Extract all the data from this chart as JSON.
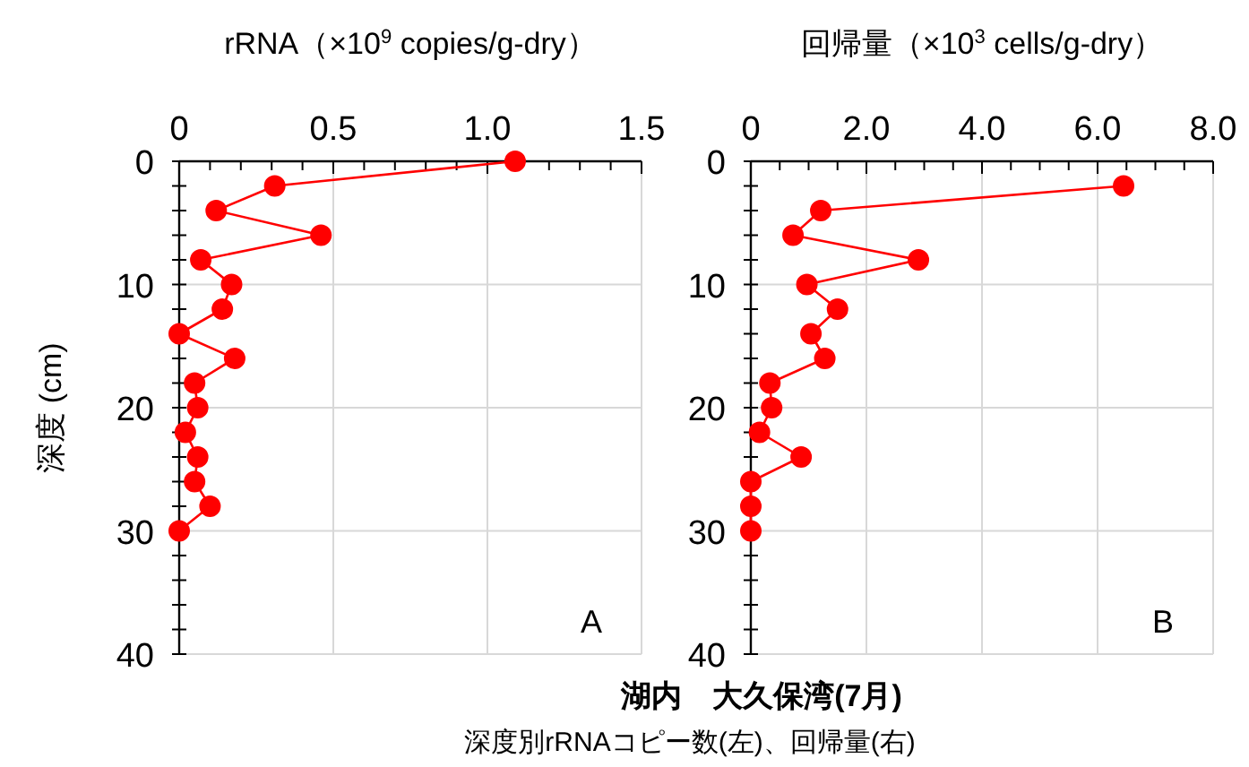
{
  "chart_data": [
    {
      "type": "line",
      "subtitle": "深度別rRNAコピー数(左)、回帰量(右)",
      "xlabel": "rRNA（×10$^{9}$ copies/g-dry）",
      "ylabel": "深度 (cm)",
      "xlim": [
        0,
        1.5
      ],
      "ylim": [
        40,
        0
      ],
      "grid": true,
      "marker": "circle",
      "annotations": [
        "A"
      ],
      "xticks": [
        0,
        {
          "value": 0.1,
          "label": null
        },
        {
          "value": 0.2,
          "label": null
        },
        {
          "value": 0.3,
          "label": null
        },
        {
          "value": 0.4,
          "label": null
        },
        {
          "value": 0.5,
          "label": "0.5"
        },
        {
          "value": 0.6,
          "label": null
        },
        {
          "value": 0.7,
          "label": null
        },
        {
          "value": 0.8,
          "label": null
        },
        {
          "value": 0.9,
          "label": null
        },
        {
          "value": 1,
          "label": "1.0"
        },
        {
          "value": 1.1,
          "label": null
        },
        {
          "value": 1.2,
          "label": null
        },
        {
          "value": 1.3,
          "label": null
        },
        {
          "value": 1.4,
          "label": null
        },
        {
          "value": 1.5,
          "label": "1.5"
        }
      ],
      "yticks": [
        0,
        {
          "value": 2,
          "label": null
        },
        {
          "value": 4,
          "label": null
        },
        {
          "value": 6,
          "label": null
        },
        {
          "value": 8,
          "label": null
        },
        10,
        {
          "value": 12,
          "label": null
        },
        {
          "value": 14,
          "label": null
        },
        {
          "value": 16,
          "label": null
        },
        {
          "value": 18,
          "label": null
        },
        20,
        {
          "value": 22,
          "label": null
        },
        {
          "value": 24,
          "label": null
        },
        {
          "value": 26,
          "label": null
        },
        {
          "value": 28,
          "label": null
        },
        30,
        {
          "value": 32,
          "label": null
        },
        {
          "value": 34,
          "label": null
        },
        {
          "value": 36,
          "label": null
        },
        {
          "value": 38,
          "label": null
        },
        40
      ],
      "series": [
        {
          "color": "#ff0000",
          "x": [
            1.09,
            0.31,
            0.12,
            0.46,
            0.07,
            0.17,
            0.14,
            0,
            0.18,
            0.05,
            0.06,
            0.02,
            0.06,
            0.05,
            0.1,
            0
          ],
          "values": [
            0,
            2,
            4,
            6,
            8,
            10,
            12,
            14,
            16,
            18,
            20,
            22,
            24,
            26,
            28,
            30
          ]
        }
      ]
    },
    {
      "type": "line",
      "title": "湖内　大久保湾(7月)",
      "xlabel": "回帰量（×10$^{3}$ cells/g-dry）",
      "xlim": [
        0,
        8
      ],
      "ylim": [
        40,
        0
      ],
      "grid": true,
      "marker": "circle",
      "annotations": [
        "B"
      ],
      "xticks": [
        0,
        {
          "value": 0.5,
          "label": null
        },
        {
          "value": 1,
          "label": null
        },
        {
          "value": 1.5,
          "label": null
        },
        {
          "value": 2,
          "label": "2.0"
        },
        {
          "value": 2.5,
          "label": null
        },
        {
          "value": 3,
          "label": null
        },
        {
          "value": 3.5,
          "label": null
        },
        {
          "value": 4,
          "label": "4.0"
        },
        {
          "value": 4.5,
          "label": null
        },
        {
          "value": 5,
          "label": null
        },
        {
          "value": 5.5,
          "label": null
        },
        {
          "value": 6,
          "label": "6.0"
        },
        {
          "value": 6.5,
          "label": null
        },
        {
          "value": 7,
          "label": null
        },
        {
          "value": 7.5,
          "label": null
        },
        {
          "value": 8,
          "label": "8.0"
        }
      ],
      "yticks": [
        0,
        {
          "value": 2,
          "label": null
        },
        {
          "value": 4,
          "label": null
        },
        {
          "value": 6,
          "label": null
        },
        {
          "value": 8,
          "label": null
        },
        10,
        {
          "value": 12,
          "label": null
        },
        {
          "value": 14,
          "label": null
        },
        {
          "value": 16,
          "label": null
        },
        {
          "value": 18,
          "label": null
        },
        20,
        {
          "value": 22,
          "label": null
        },
        {
          "value": 24,
          "label": null
        },
        {
          "value": 26,
          "label": null
        },
        {
          "value": 28,
          "label": null
        },
        30,
        {
          "value": 32,
          "label": null
        },
        {
          "value": 34,
          "label": null
        },
        {
          "value": 36,
          "label": null
        },
        {
          "value": 38,
          "label": null
        },
        40
      ],
      "series": [
        {
          "color": "#ff0000",
          "x": [
            6.45,
            1.21,
            0.73,
            2.9,
            0.97,
            1.5,
            1.04,
            1.28,
            0.33,
            0.36,
            0.15,
            0.87,
            0,
            0,
            0
          ],
          "values": [
            2,
            4,
            6,
            8,
            10,
            12,
            14,
            16,
            18,
            20,
            22,
            24,
            26,
            28,
            30
          ]
        }
      ]
    }
  ]
}
